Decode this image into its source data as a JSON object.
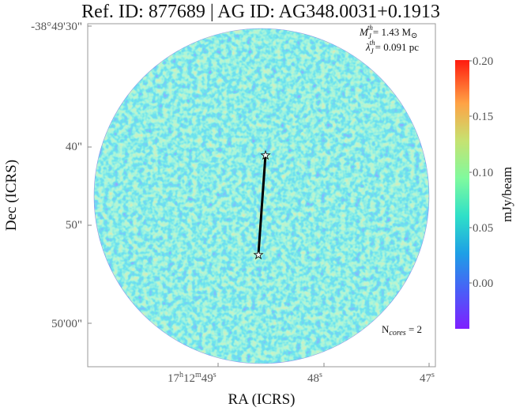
{
  "title": "Ref. ID: 877689 | AG ID: AG348.0031+0.1913",
  "annotations": {
    "mass_symbol": "M",
    "mass_sub": "J",
    "mass_sup": "th",
    "mass_value": "= 1.43 M",
    "mass_sun": "⊙",
    "lambda_symbol": "λ",
    "lambda_sub": "J",
    "lambda_sup": "th",
    "lambda_value": "= 0.091 pc",
    "ncores_prefix": "N",
    "ncores_sub": "cores",
    "ncores_value": " = 2"
  },
  "axes": {
    "xlabel": "RA (ICRS)",
    "ylabel": "Dec (ICRS)",
    "x_ticks": [
      {
        "base": "17",
        "h": "h",
        "min": "12",
        "m": "m",
        "sec": "49",
        "s": "s"
      },
      {
        "base": "",
        "h": "",
        "min": "",
        "m": "",
        "sec": "48",
        "s": "s"
      },
      {
        "base": "",
        "h": "",
        "min": "",
        "m": "",
        "sec": "47",
        "s": "s"
      }
    ],
    "y_ticks": [
      "-38°49'30\"",
      "40\"",
      "50\"",
      "50'00\""
    ]
  },
  "colorbar": {
    "label": "mJy/beam",
    "ticks": [
      "0.20",
      "0.15",
      "0.10",
      "0.05",
      "0.00"
    ],
    "colormap": "rainbow"
  },
  "chart_data": {
    "type": "heatmap",
    "title": "Ref. ID: 877689 | AG ID: AG348.0031+0.1913",
    "xlabel": "RA (ICRS)",
    "ylabel": "Dec (ICRS)",
    "colorbar_range": [
      -0.02,
      0.2
    ],
    "colorbar_label": "mJy/beam",
    "cores": [
      {
        "ra": "17h12m48.5s",
        "dec": "-38°49'37.5\""
      },
      {
        "ra": "17h12m48.6s",
        "dec": "-38°49'51.5\""
      }
    ],
    "n_cores": 2
  }
}
